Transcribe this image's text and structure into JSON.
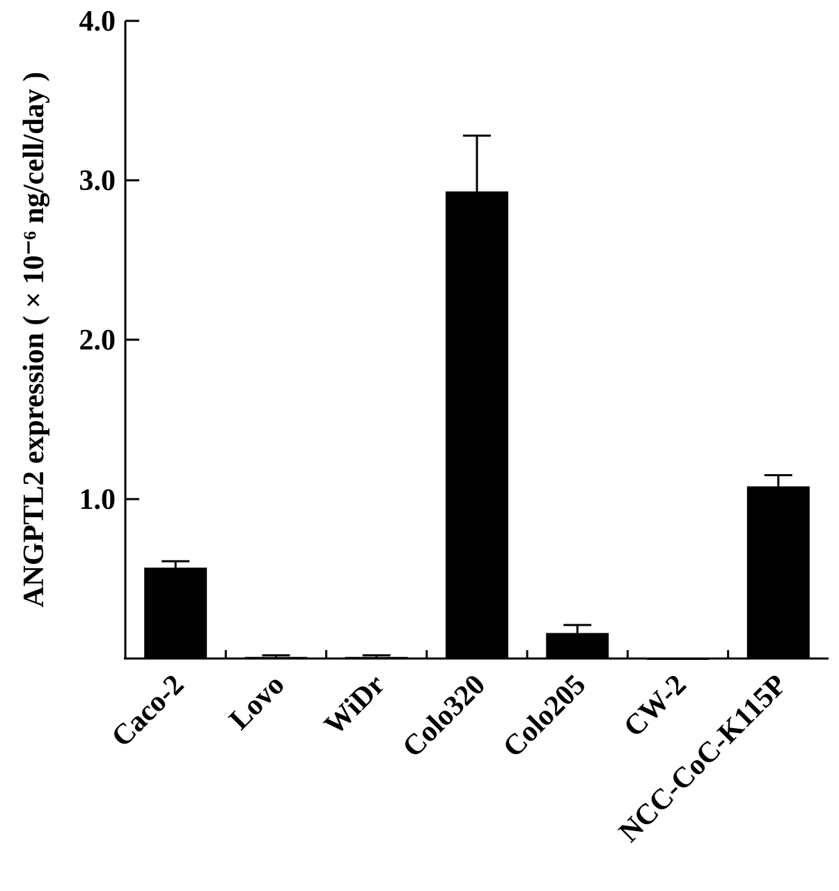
{
  "chart_data": {
    "type": "bar",
    "y_label": "ANGPTL2 expression ( × 10⁻⁶ ng/cell/day )",
    "categories": [
      "Caco-2",
      "Lovo",
      "WiDr",
      "Colo320",
      "Colo205",
      "CW-2",
      "NCC-CoC-K115P"
    ],
    "values": [
      0.57,
      0.01,
      0.01,
      2.93,
      0.16,
      0,
      1.08
    ],
    "errors": [
      0.04,
      0.01,
      0.01,
      0.35,
      0.05,
      0,
      0.07
    ],
    "color": "#000000",
    "ylim": [
      0,
      4
    ],
    "yticks": [
      {
        "value": 1,
        "label": "1.0"
      },
      {
        "value": 2,
        "label": "2.0"
      },
      {
        "value": 3,
        "label": "3.0"
      },
      {
        "value": 4,
        "label": "4.0"
      }
    ]
  }
}
